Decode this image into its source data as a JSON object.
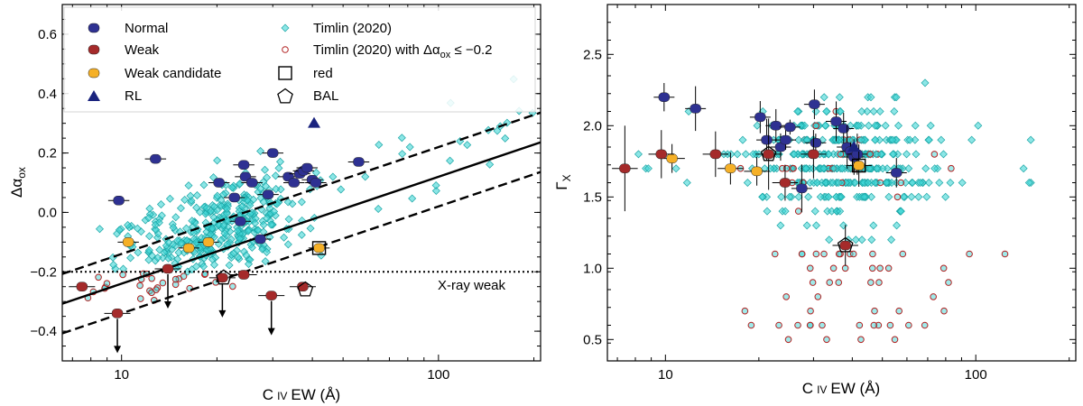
{
  "colors": {
    "normal": "#2e3192",
    "weak": "#a52a2a",
    "weak_candidate": "#f5b027",
    "rl": "#1a237e",
    "timlin": "#3fd6d6",
    "timlin_weak_edge": "#b22222"
  },
  "legend": {
    "normal": "Normal",
    "weak": "Weak",
    "weak_candidate": "Weak candidate",
    "rl": "RL",
    "timlin": "Timlin (2020)",
    "timlin_weak": "Timlin (2020) with Δαox ≤ −0.2",
    "red": "red",
    "bal": "BAL"
  },
  "chart_data": [
    {
      "type": "scatter",
      "panel": "left",
      "xlabel": "C IV EW (Å)",
      "ylabel": "Δαox",
      "xscale": "log",
      "xlim": [
        6.5,
        210
      ],
      "ylim": [
        -0.5,
        0.7
      ],
      "xticks": [
        10,
        100
      ],
      "xtick_labels": [
        "10",
        "100"
      ],
      "yticks": [
        -0.4,
        -0.2,
        0.0,
        0.2,
        0.4,
        0.6
      ],
      "ytick_labels": [
        "−0.4",
        "−0.2",
        "0.0",
        "0.2",
        "0.4",
        "0.6"
      ],
      "annotation": "X-ray weak",
      "xray_weak_threshold": -0.2,
      "relation": {
        "slope": 0.36,
        "intercept": -0.6,
        "offset": 0.1
      },
      "normal": [
        {
          "x": 9.8,
          "y": 0.04
        },
        {
          "x": 12.8,
          "y": 0.18
        },
        {
          "x": 20.3,
          "y": 0.1
        },
        {
          "x": 22.7,
          "y": 0.05
        },
        {
          "x": 23.7,
          "y": -0.03
        },
        {
          "x": 24.3,
          "y": 0.16
        },
        {
          "x": 24.6,
          "y": 0.12
        },
        {
          "x": 25.8,
          "y": 0.1
        },
        {
          "x": 27.4,
          "y": -0.09
        },
        {
          "x": 29.0,
          "y": 0.06
        },
        {
          "x": 30.0,
          "y": 0.2
        },
        {
          "x": 33.6,
          "y": 0.12
        },
        {
          "x": 35.0,
          "y": 0.1
        },
        {
          "x": 36.5,
          "y": 0.13
        },
        {
          "x": 37.5,
          "y": 0.14
        },
        {
          "x": 38.5,
          "y": 0.15
        },
        {
          "x": 40.0,
          "y": 0.11
        },
        {
          "x": 41.0,
          "y": 0.1
        },
        {
          "x": 56.0,
          "y": 0.17
        }
      ],
      "weak": [
        {
          "x": 7.5,
          "y": -0.25
        },
        {
          "x": 9.7,
          "y": -0.34,
          "upper_limit": true
        },
        {
          "x": 14.0,
          "y": -0.19,
          "upper_limit": true
        },
        {
          "x": 20.8,
          "y": -0.22,
          "upper_limit": true
        },
        {
          "x": 24.3,
          "y": -0.21
        },
        {
          "x": 29.7,
          "y": -0.28,
          "upper_limit": true
        },
        {
          "x": 37.3,
          "y": -0.25
        }
      ],
      "weak_candidate": [
        {
          "x": 10.5,
          "y": -0.1
        },
        {
          "x": 16.3,
          "y": -0.12
        },
        {
          "x": 18.8,
          "y": -0.1
        },
        {
          "x": 42.0,
          "y": -0.12
        }
      ],
      "rl": [
        {
          "x": 40.5,
          "y": 0.3
        }
      ],
      "red": [
        {
          "x": 42.0,
          "y": -0.12
        }
      ],
      "bal": [
        {
          "x": 21.0,
          "y": -0.22
        },
        {
          "x": 38.0,
          "y": -0.26
        }
      ]
    },
    {
      "type": "scatter",
      "panel": "right",
      "xlabel": "C IV EW (Å)",
      "ylabel": "ΓX",
      "xscale": "log",
      "xlim": [
        6.5,
        210
      ],
      "ylim": [
        0.35,
        2.85
      ],
      "xticks": [
        10,
        100
      ],
      "xtick_labels": [
        "10",
        "100"
      ],
      "yticks": [
        0.5,
        1.0,
        1.5,
        2.0,
        2.5
      ],
      "ytick_labels": [
        "0.5",
        "1.0",
        "1.5",
        "2.0",
        "2.5"
      ],
      "normal": [
        {
          "x": 9.9,
          "y": 2.2
        },
        {
          "x": 12.5,
          "y": 2.12
        },
        {
          "x": 20.2,
          "y": 2.06
        },
        {
          "x": 21.2,
          "y": 1.9
        },
        {
          "x": 22.7,
          "y": 2.0
        },
        {
          "x": 23.5,
          "y": 1.85
        },
        {
          "x": 25.2,
          "y": 1.99
        },
        {
          "x": 24.4,
          "y": 1.9
        },
        {
          "x": 27.5,
          "y": 1.56
        },
        {
          "x": 30.2,
          "y": 2.15
        },
        {
          "x": 30.5,
          "y": 1.88
        },
        {
          "x": 35.5,
          "y": 2.03
        },
        {
          "x": 37.5,
          "y": 1.98
        },
        {
          "x": 38.5,
          "y": 1.85
        },
        {
          "x": 39.5,
          "y": 1.82
        },
        {
          "x": 40.5,
          "y": 1.78
        },
        {
          "x": 41.5,
          "y": 1.8
        },
        {
          "x": 55.5,
          "y": 1.67
        }
      ],
      "weak": [
        {
          "x": 7.4,
          "y": 1.7
        },
        {
          "x": 9.7,
          "y": 1.8
        },
        {
          "x": 14.5,
          "y": 1.8
        },
        {
          "x": 21.5,
          "y": 1.8
        },
        {
          "x": 24.3,
          "y": 1.6
        },
        {
          "x": 30.0,
          "y": 1.8
        },
        {
          "x": 38.0,
          "y": 1.16
        }
      ],
      "weak_candidate": [
        {
          "x": 10.5,
          "y": 1.77
        },
        {
          "x": 16.2,
          "y": 1.7
        },
        {
          "x": 19.7,
          "y": 1.68
        },
        {
          "x": 42.0,
          "y": 1.72
        }
      ],
      "rl": [
        {
          "x": 40.5,
          "y": 1.85
        }
      ],
      "red": [
        {
          "x": 42.0,
          "y": 1.72
        }
      ],
      "bal": [
        {
          "x": 21.5,
          "y": 1.8
        },
        {
          "x": 38.0,
          "y": 1.16
        }
      ]
    }
  ]
}
